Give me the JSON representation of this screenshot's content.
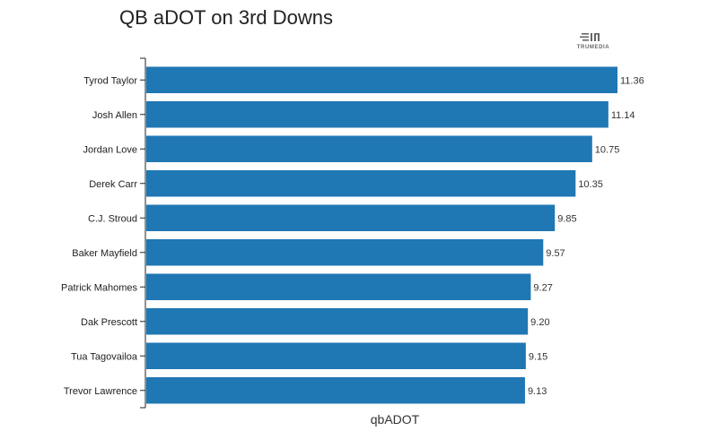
{
  "chart_data": {
    "type": "bar",
    "orientation": "horizontal",
    "title": "QB aDOT on 3rd Downs",
    "xlabel": "qbADOT",
    "ylabel": "",
    "categories": [
      "Tyrod Taylor",
      "Josh Allen",
      "Jordan Love",
      "Derek Carr",
      "C.J. Stroud",
      "Baker Mayfield",
      "Patrick Mahomes",
      "Dak Prescott",
      "Tua Tagovailoa",
      "Trevor Lawrence"
    ],
    "values": [
      11.36,
      11.14,
      10.75,
      10.35,
      9.85,
      9.57,
      9.27,
      9.2,
      9.15,
      9.13
    ],
    "value_labels": [
      "11.36",
      "11.14",
      "10.75",
      "10.35",
      "9.85",
      "9.57",
      "9.27",
      "9.20",
      "9.15",
      "9.13"
    ],
    "xlim": [
      0,
      11.36
    ],
    "bar_color": "#1f77b4",
    "grid": false,
    "legend": "none"
  },
  "logo": {
    "text": "TRUMEDIA",
    "icon": "trumedia-logo-icon"
  }
}
